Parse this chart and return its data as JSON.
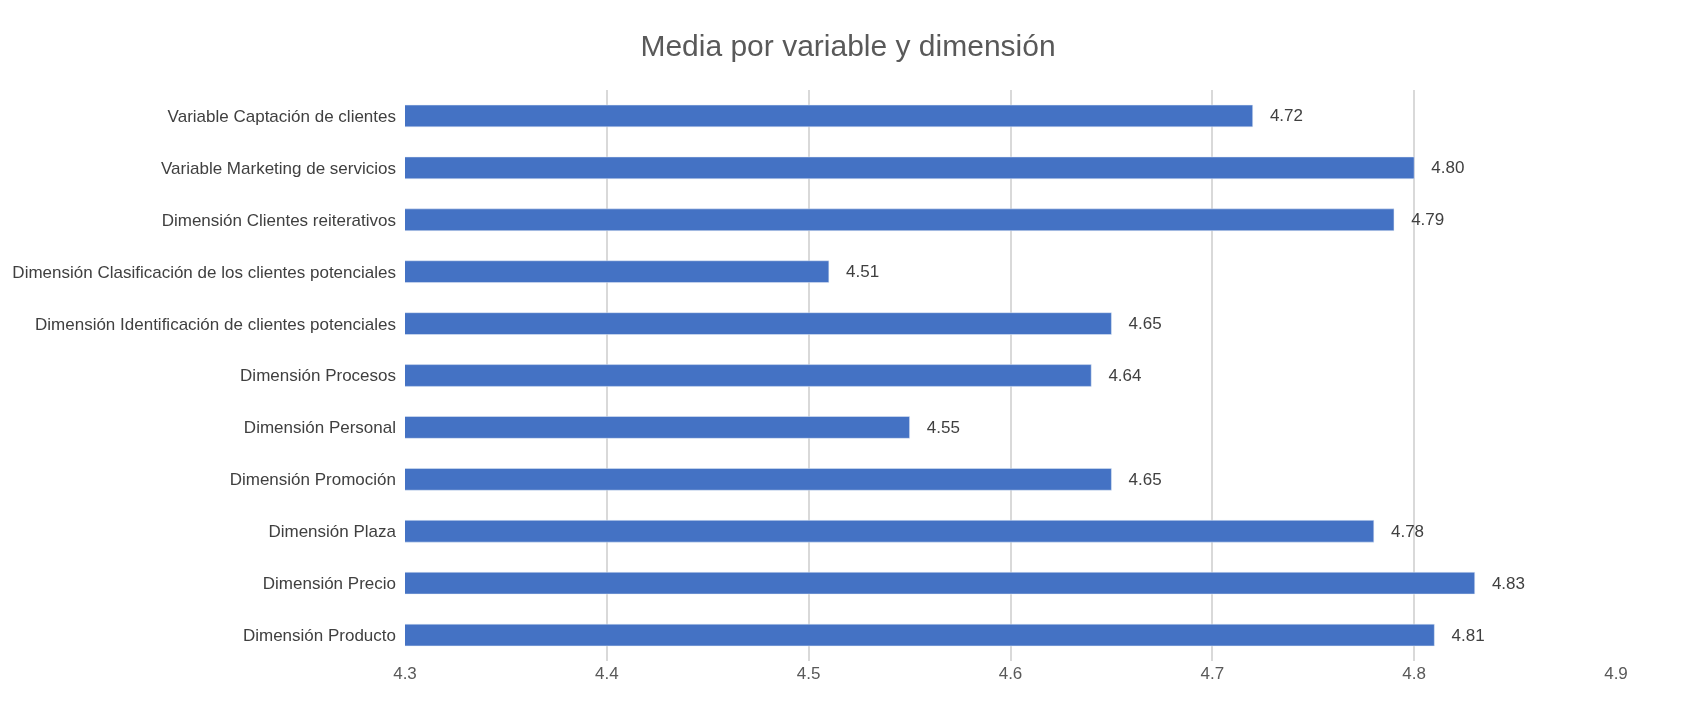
{
  "chart_data": {
    "type": "bar",
    "orientation": "horizontal",
    "title": "Media por variable y dimensión",
    "categories": [
      "Variable Captación de clientes",
      "Variable Marketing de servicios",
      "Dimensión Clientes reiterativos",
      "Dimensión Clasificación de los clientes potenciales",
      "Dimensión Identificación de clientes potenciales",
      "Dimensión Procesos",
      "Dimensión Personal",
      "Dimensión Promoción",
      "Dimensión Plaza",
      "Dimensión Precio",
      "Dimensión Producto"
    ],
    "values": [
      4.72,
      4.8,
      4.79,
      4.51,
      4.65,
      4.64,
      4.55,
      4.65,
      4.78,
      4.83,
      4.81
    ],
    "value_labels": [
      "4.72",
      "4.80",
      "4.79",
      "4.51",
      "4.65",
      "4.64",
      "4.55",
      "4.65",
      "4.78",
      "4.83",
      "4.81"
    ],
    "color": "#4472c4",
    "xlim": [
      4.3,
      4.9
    ],
    "xticks": [
      4.3,
      4.4,
      4.5,
      4.6,
      4.7,
      4.8,
      4.9
    ],
    "grid": "x"
  }
}
